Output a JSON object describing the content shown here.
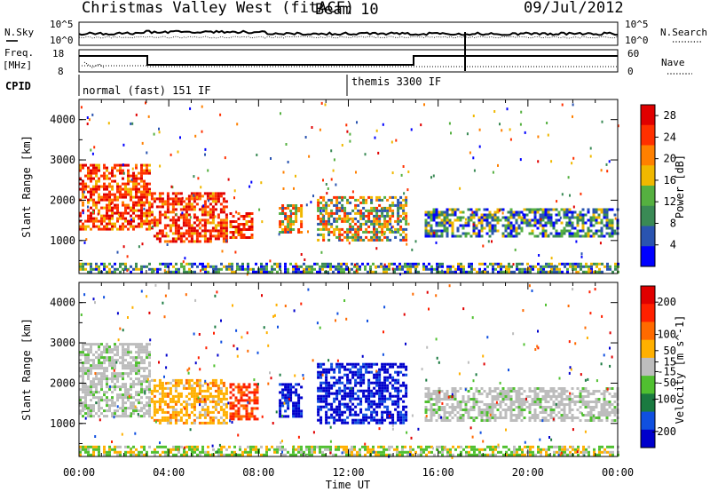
{
  "header": {
    "station": "Christmas Valley West (fitACF)",
    "beam": "Beam 10",
    "date": "09/Jul/2012"
  },
  "noise_panel": {
    "left_label": "N.Sky",
    "left_ticks": [
      "10^5",
      "10^0"
    ],
    "right_label": "N.Search",
    "right_ticks": [
      "10^5",
      "10^0"
    ]
  },
  "freq_panel": {
    "left_label_1": "Freq.",
    "left_label_2": "[MHz]",
    "left_ticks": [
      "18",
      "8"
    ],
    "right_label": "Nave",
    "right_ticks": [
      "60",
      "0"
    ]
  },
  "cpid_panel": {
    "label": "CPID",
    "modes": [
      "normal (fast) 151 IF",
      "themis 3300 IF"
    ]
  },
  "colors": {
    "power_scale": [
      "#0000ff",
      "#2a54b0",
      "#3a8a55",
      "#55b040",
      "#f0b800",
      "#ff8000",
      "#ff3000",
      "#e00000"
    ],
    "velocity_scale": [
      "#0000cc",
      "#1050e0",
      "#1a7a40",
      "#50c030",
      "#bdbdbd",
      "#ffb000",
      "#ff6a00",
      "#ff2000",
      "#e00000"
    ]
  },
  "chart_data": [
    {
      "type": "heatmap",
      "title": "",
      "xlabel": "",
      "ylabel": "Slant Range [km]",
      "x_ticks": [
        "00:00",
        "04:00",
        "08:00",
        "12:00",
        "16:00",
        "20:00",
        "00:00"
      ],
      "y_ticks": [
        "1000",
        "2000",
        "3000",
        "4000"
      ],
      "ylim": [
        180,
        4500
      ],
      "colorbar": {
        "label": "Power [dB]",
        "ticks": [
          "4",
          "8",
          "12",
          "16",
          "20",
          "24",
          "28"
        ],
        "range": [
          0,
          30
        ]
      },
      "regions": [
        {
          "t0": 0.0,
          "t1": 3.2,
          "r0": 1300,
          "r1": 2900,
          "level": "high"
        },
        {
          "t0": 3.2,
          "t1": 6.6,
          "r0": 1000,
          "r1": 2200,
          "level": "high"
        },
        {
          "t0": 6.7,
          "t1": 7.7,
          "r0": 1100,
          "r1": 1700,
          "level": "high"
        },
        {
          "t0": 8.9,
          "t1": 9.9,
          "r0": 1200,
          "r1": 1900,
          "level": "mid"
        },
        {
          "t0": 10.6,
          "t1": 14.6,
          "r0": 1000,
          "r1": 2100,
          "level": "mid"
        },
        {
          "t0": 15.4,
          "t1": 24.0,
          "r0": 1100,
          "r1": 1800,
          "level": "low"
        },
        {
          "t0": 0.0,
          "t1": 24.0,
          "r0": 200,
          "r1": 450,
          "level": "low"
        }
      ]
    },
    {
      "type": "heatmap",
      "title": "",
      "xlabel": "Time UT",
      "ylabel": "Slant Range [km]",
      "x_ticks": [
        "00:00",
        "04:00",
        "08:00",
        "12:00",
        "16:00",
        "20:00",
        "00:00"
      ],
      "y_ticks": [
        "1000",
        "2000",
        "3000",
        "4000"
      ],
      "ylim": [
        180,
        4500
      ],
      "colorbar": {
        "label": "Velocity [m s^-1]",
        "ticks": [
          "200",
          "100",
          "50",
          "15",
          "-15",
          "-50",
          "-100",
          "-200"
        ],
        "range": [
          -250,
          250
        ]
      },
      "regions": [
        {
          "t0": 0.0,
          "t1": 3.2,
          "r0": 1200,
          "r1": 3000,
          "level": "gray"
        },
        {
          "t0": 3.2,
          "t1": 6.6,
          "r0": 1000,
          "r1": 2100,
          "level": "orange"
        },
        {
          "t0": 6.7,
          "t1": 7.9,
          "r0": 1100,
          "r1": 2000,
          "level": "red"
        },
        {
          "t0": 8.9,
          "t1": 9.9,
          "r0": 1200,
          "r1": 2000,
          "level": "blue"
        },
        {
          "t0": 10.6,
          "t1": 14.6,
          "r0": 1000,
          "r1": 2500,
          "level": "blue"
        },
        {
          "t0": 15.4,
          "t1": 24.0,
          "r0": 1100,
          "r1": 1900,
          "level": "gray"
        },
        {
          "t0": 0.0,
          "t1": 24.0,
          "r0": 200,
          "r1": 450,
          "level": "green"
        }
      ]
    }
  ]
}
